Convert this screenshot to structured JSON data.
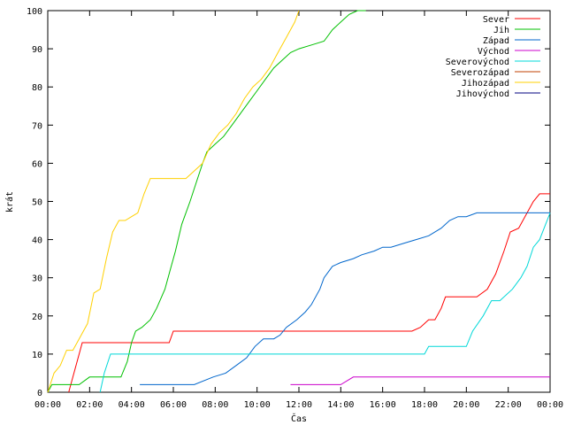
{
  "chart_data": {
    "type": "line",
    "xlabel": "Čas",
    "ylabel": "krát",
    "xlim": [
      0,
      24
    ],
    "ylim": [
      0,
      100
    ],
    "x_ticks": [
      {
        "value": 0,
        "label": "00:00"
      },
      {
        "value": 2,
        "label": "02:00"
      },
      {
        "value": 4,
        "label": "04:00"
      },
      {
        "value": 6,
        "label": "06:00"
      },
      {
        "value": 8,
        "label": "08:00"
      },
      {
        "value": 10,
        "label": "10:00"
      },
      {
        "value": 12,
        "label": "12:00"
      },
      {
        "value": 14,
        "label": "14:00"
      },
      {
        "value": 16,
        "label": "16:00"
      },
      {
        "value": 18,
        "label": "18:00"
      },
      {
        "value": 20,
        "label": "20:00"
      },
      {
        "value": 22,
        "label": "22:00"
      },
      {
        "value": 24,
        "label": "00:00"
      }
    ],
    "y_ticks": [
      0,
      10,
      20,
      30,
      40,
      50,
      60,
      70,
      80,
      90,
      100
    ],
    "grid": false,
    "legend": "top-right",
    "series": [
      {
        "name": "Sever",
        "color": "#ff0000",
        "x": [
          1.0,
          1.25,
          1.5,
          1.65,
          2.0,
          3.0,
          4.0,
          5.0,
          5.8,
          6.0,
          8.0,
          10.0,
          12.0,
          14.0,
          16.0,
          17.4,
          17.8,
          18.2,
          18.5,
          18.8,
          19.0,
          20.0,
          20.5,
          21.0,
          21.4,
          21.8,
          22.1,
          22.5,
          22.9,
          23.2,
          23.5,
          24.0
        ],
        "values": [
          0,
          5,
          10,
          13,
          13,
          13,
          13,
          13,
          13,
          16,
          16,
          16,
          16,
          16,
          16,
          16,
          17,
          19,
          19,
          22,
          25,
          25,
          25,
          27,
          31,
          37,
          42,
          43,
          47,
          50,
          52,
          52
        ]
      },
      {
        "name": "Jih",
        "color": "#00c000",
        "x": [
          0.0,
          0.2,
          0.6,
          1.0,
          1.5,
          2.0,
          2.5,
          3.0,
          3.5,
          3.8,
          4.0,
          4.2,
          4.5,
          4.9,
          5.2,
          5.6,
          5.9,
          6.1,
          6.4,
          6.8,
          7.1,
          7.4,
          7.6,
          8.0,
          8.4,
          8.8,
          9.2,
          9.6,
          10.0,
          10.4,
          10.8,
          11.2,
          11.6,
          12.0,
          12.6,
          13.2,
          13.6,
          14.0,
          14.4,
          14.8,
          15.2
        ],
        "values": [
          0,
          2,
          2,
          2,
          2,
          4,
          4,
          4,
          4,
          8,
          13,
          16,
          17,
          19,
          22,
          27,
          33,
          37,
          44,
          50,
          55,
          60,
          63,
          65,
          67,
          70,
          73,
          76,
          79,
          82,
          85,
          87,
          89,
          90,
          91,
          92,
          95,
          97,
          99,
          100,
          100
        ]
      },
      {
        "name": "Západ",
        "color": "#0066cc",
        "x": [
          4.4,
          5.0,
          6.0,
          7.0,
          7.9,
          8.5,
          9.0,
          9.5,
          9.9,
          10.3,
          10.8,
          11.1,
          11.4,
          11.9,
          12.3,
          12.6,
          13.0,
          13.2,
          13.6,
          14.0,
          14.6,
          15.0,
          15.6,
          16.0,
          16.4,
          17.0,
          17.6,
          18.2,
          18.8,
          19.2,
          19.6,
          20.0,
          20.5,
          21.0,
          22.0,
          23.0,
          24.0
        ],
        "values": [
          2,
          2,
          2,
          2,
          4,
          5,
          7,
          9,
          12,
          14,
          14,
          15,
          17,
          19,
          21,
          23,
          27,
          30,
          33,
          34,
          35,
          36,
          37,
          38,
          38,
          39,
          40,
          41,
          43,
          45,
          46,
          46,
          47,
          47,
          47,
          47,
          47
        ]
      },
      {
        "name": "Východ",
        "color": "#cc00cc",
        "x": [
          11.6,
          12.0,
          13.0,
          14.0,
          14.6,
          15.0,
          16.0,
          18.0,
          20.0,
          22.0,
          24.0
        ],
        "values": [
          2,
          2,
          2,
          2,
          4,
          4,
          4,
          4,
          4,
          4,
          4
        ]
      },
      {
        "name": "Severovýchod",
        "color": "#00d8d8",
        "x": [
          2.5,
          2.7,
          3.0,
          4.0,
          6.0,
          8.0,
          10.0,
          12.0,
          14.0,
          16.0,
          18.0,
          18.2,
          19.0,
          20.0,
          20.3,
          20.8,
          21.2,
          21.6,
          22.2,
          22.6,
          22.9,
          23.2,
          23.5,
          24.0
        ],
        "values": [
          0,
          5,
          10,
          10,
          10,
          10,
          10,
          10,
          10,
          10,
          10,
          12,
          12,
          12,
          16,
          20,
          24,
          24,
          27,
          30,
          33,
          38,
          40,
          47
        ]
      },
      {
        "name": "Severozápad",
        "color": "#c04000",
        "x": [],
        "values": []
      },
      {
        "name": "Jihozápad",
        "color": "#ffd000",
        "x": [
          0.0,
          0.3,
          0.6,
          0.9,
          1.2,
          1.6,
          1.9,
          2.2,
          2.5,
          2.8,
          3.1,
          3.4,
          3.7,
          4.0,
          4.3,
          4.6,
          4.9,
          5.2,
          5.5,
          6.0,
          6.6,
          7.0,
          7.4,
          7.8,
          8.2,
          8.6,
          9.0,
          9.4,
          9.8,
          10.2,
          10.6,
          11.0,
          11.4,
          11.8,
          12.0
        ],
        "values": [
          0,
          5,
          7,
          11,
          11,
          15,
          18,
          26,
          27,
          35,
          42,
          45,
          45,
          46,
          47,
          52,
          56,
          56,
          56,
          56,
          56,
          58,
          60,
          65,
          68,
          70,
          73,
          77,
          80,
          82,
          85,
          89,
          93,
          97,
          100
        ]
      },
      {
        "name": "Jihovýchod",
        "color": "#000080",
        "x": [],
        "values": []
      }
    ]
  }
}
